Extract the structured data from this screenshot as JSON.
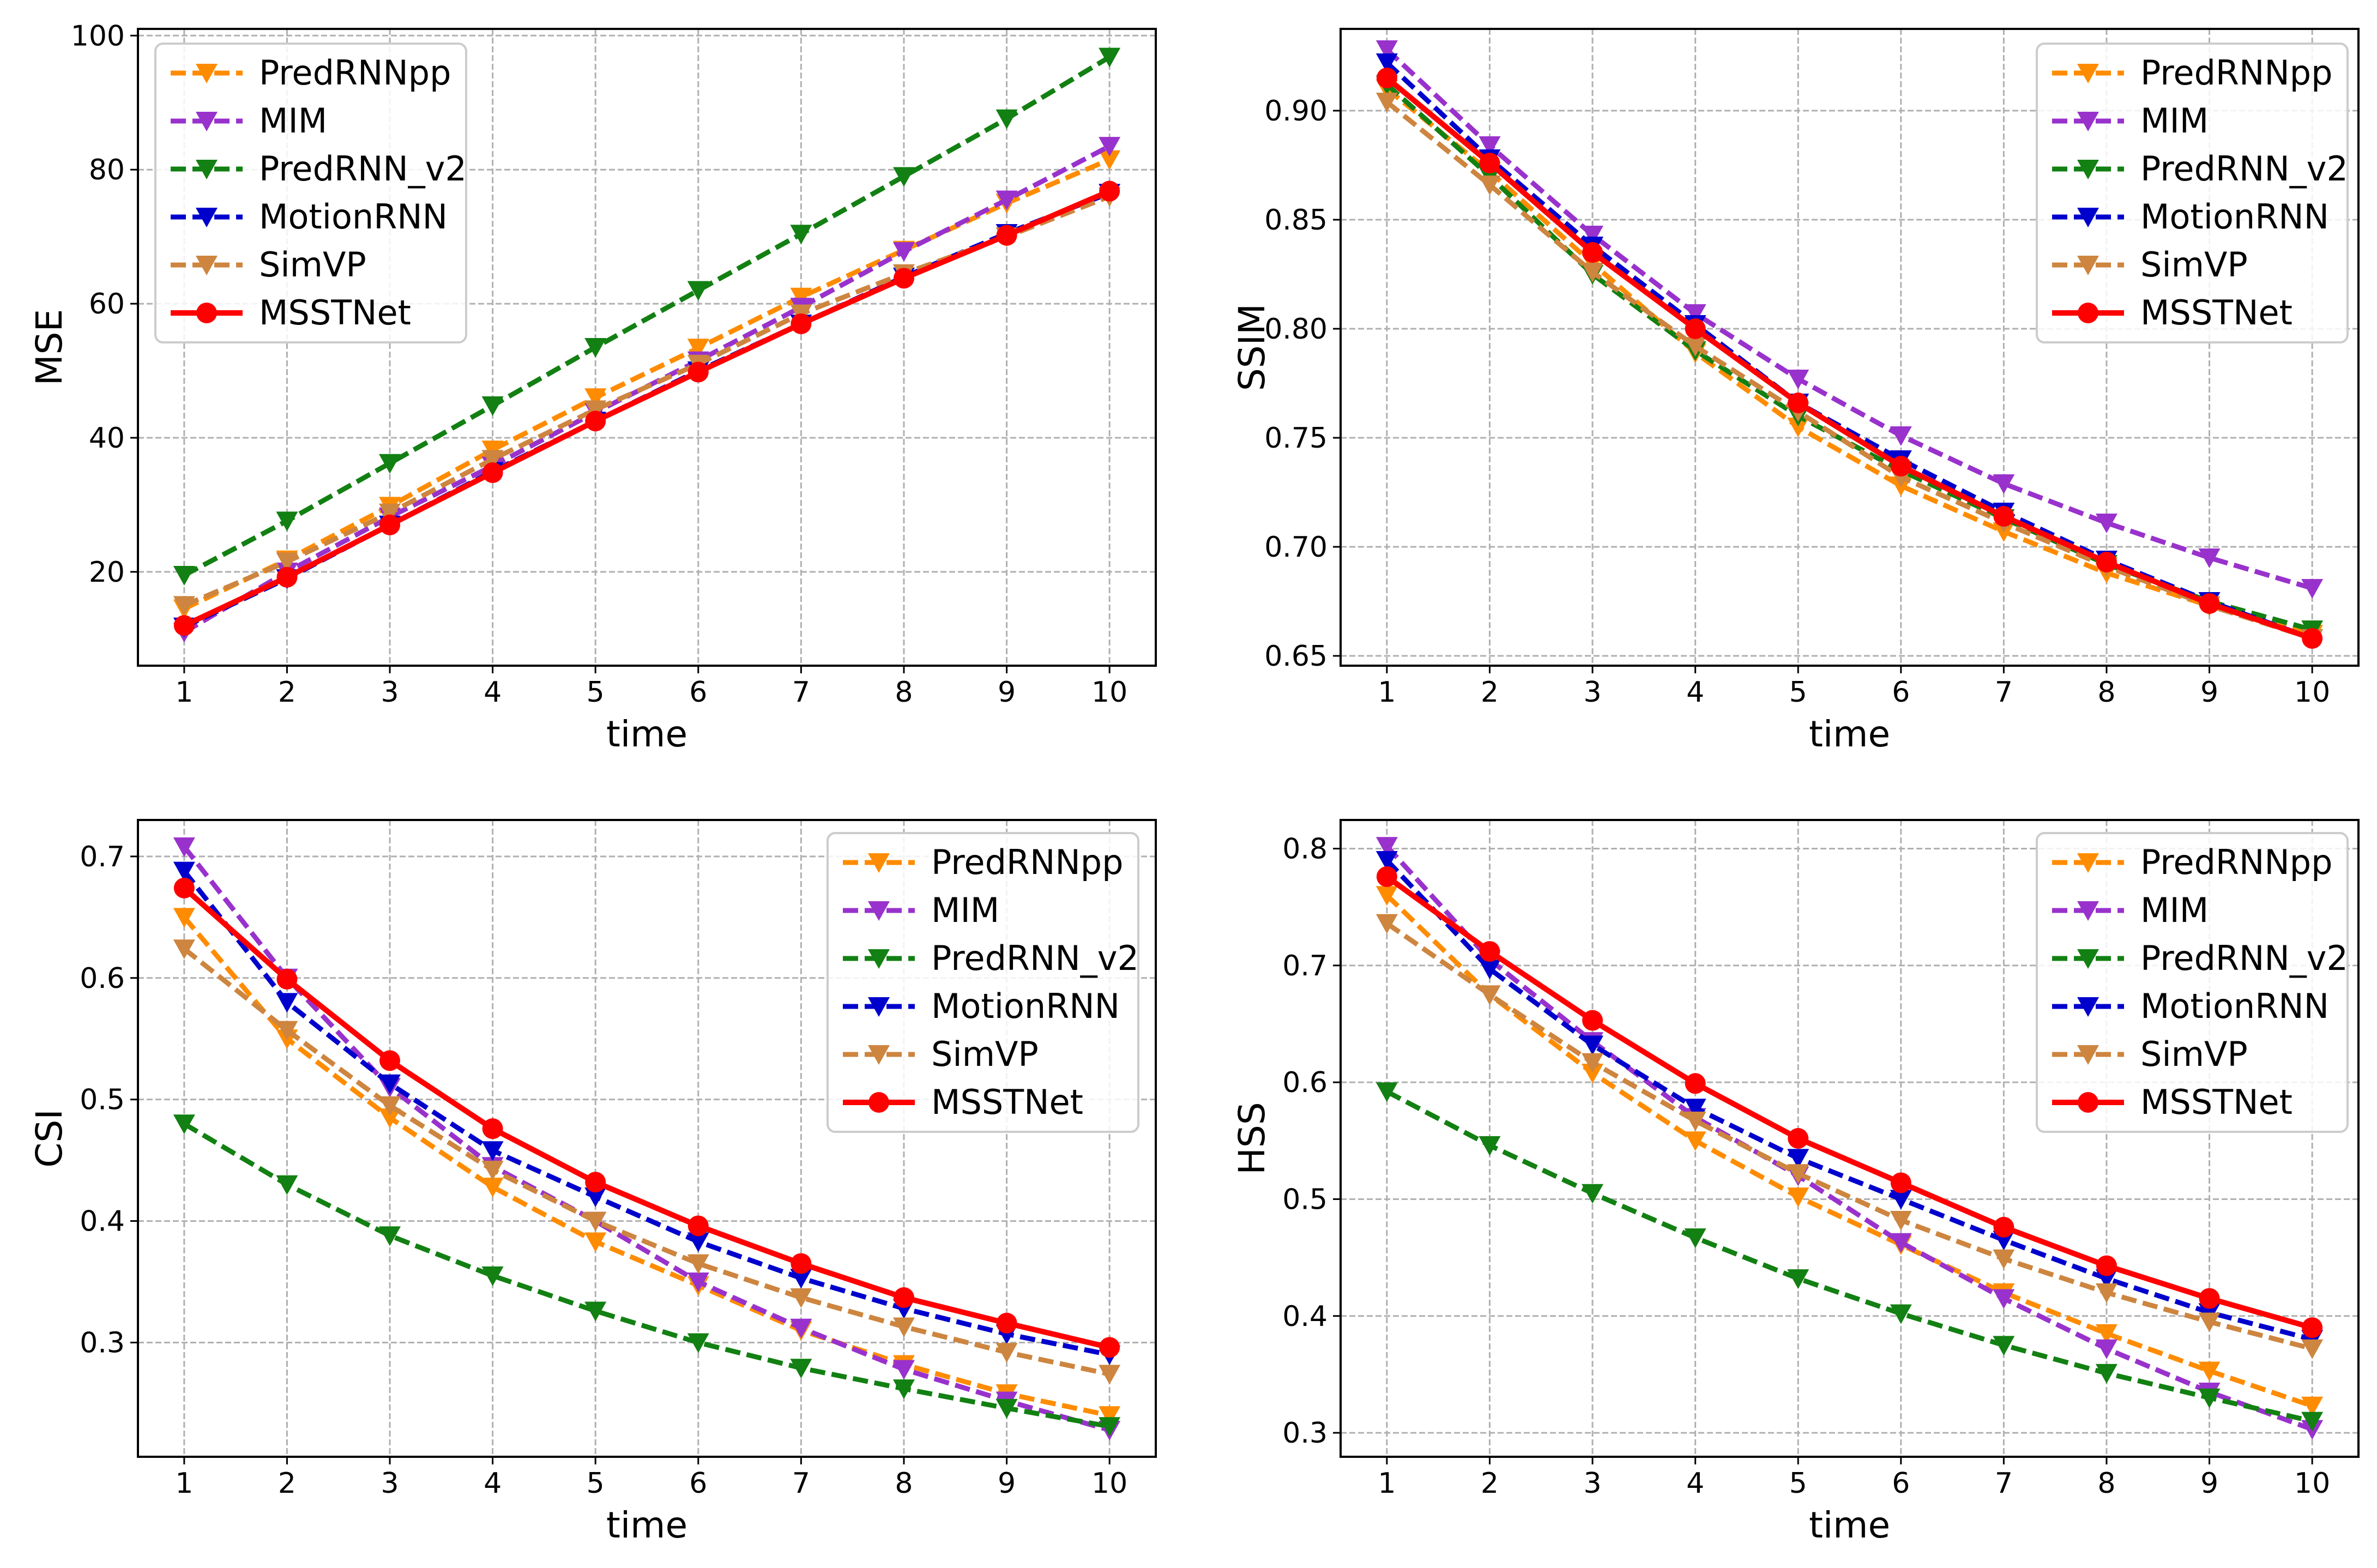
{
  "figure": {
    "title": ""
  },
  "series_styles": {
    "PredRNNpp": {
      "color": "#ff8c00",
      "marker": "triangle-down",
      "line": "dashed"
    },
    "MIM": {
      "color": "#9932cc",
      "marker": "triangle-down",
      "line": "dashed"
    },
    "PredRNN_v2": {
      "color": "#128012",
      "marker": "triangle-down",
      "line": "dashed"
    },
    "MotionRNN": {
      "color": "#0000cd",
      "marker": "triangle-down",
      "line": "dashed"
    },
    "SimVP": {
      "color": "#cd853f",
      "marker": "triangle-down",
      "line": "dashed"
    },
    "MSSTNet": {
      "color": "#ff0000",
      "marker": "circle",
      "line": "solid"
    }
  },
  "chart_data": [
    {
      "type": "line",
      "title": "",
      "xlabel": "time",
      "ylabel": "MSE",
      "x": [
        1,
        2,
        3,
        4,
        5,
        6,
        7,
        8,
        9,
        10
      ],
      "xlim": [
        0.55,
        10.45
      ],
      "ylim": [
        6,
        101
      ],
      "yticks": [
        20,
        40,
        60,
        80,
        100
      ],
      "ytick_labels": [
        "20",
        "40",
        "60",
        "80",
        "100"
      ],
      "xtick_labels": [
        "1",
        "2",
        "3",
        "4",
        "5",
        "6",
        "7",
        "8",
        "9",
        "10"
      ],
      "grid": true,
      "legend_position": "top-left",
      "series": [
        {
          "name": "PredRNNpp",
          "values": [
            14.5,
            21.8,
            29.8,
            38.2,
            46.0,
            53.4,
            61.0,
            68.0,
            75.0,
            81.5
          ]
        },
        {
          "name": "MIM",
          "values": [
            11.0,
            20.0,
            28.2,
            35.8,
            43.8,
            51.5,
            59.5,
            67.8,
            75.5,
            83.5
          ]
        },
        {
          "name": "PredRNN_v2",
          "values": [
            19.5,
            27.6,
            36.2,
            44.8,
            53.5,
            62.0,
            70.4,
            79.0,
            87.6,
            96.8
          ]
        },
        {
          "name": "MotionRNN",
          "values": [
            11.8,
            19.0,
            27.0,
            35.0,
            42.5,
            50.0,
            57.0,
            64.0,
            70.5,
            76.5
          ]
        },
        {
          "name": "SimVP",
          "values": [
            15.0,
            21.5,
            28.8,
            36.8,
            44.2,
            51.0,
            58.5,
            64.5,
            70.0,
            76.0
          ]
        },
        {
          "name": "MSSTNet",
          "values": [
            12.0,
            19.2,
            27.0,
            34.8,
            42.5,
            49.8,
            57.0,
            63.8,
            70.2,
            76.8
          ]
        }
      ]
    },
    {
      "type": "line",
      "title": "",
      "xlabel": "time",
      "ylabel": "SSIM",
      "x": [
        1,
        2,
        3,
        4,
        5,
        6,
        7,
        8,
        9,
        10
      ],
      "xlim": [
        0.55,
        10.45
      ],
      "ylim": [
        0.6455,
        0.9375
      ],
      "yticks": [
        0.65,
        0.7,
        0.75,
        0.8,
        0.85,
        0.9
      ],
      "ytick_labels": [
        "0.65",
        "0.70",
        "0.75",
        "0.80",
        "0.85",
        "0.90"
      ],
      "xtick_labels": [
        "1",
        "2",
        "3",
        "4",
        "5",
        "6",
        "7",
        "8",
        "9",
        "10"
      ],
      "grid": true,
      "legend_position": "top-right",
      "series": [
        {
          "name": "PredRNNpp",
          "values": [
            0.91,
            0.872,
            0.83,
            0.789,
            0.755,
            0.728,
            0.707,
            0.688,
            0.673,
            0.66
          ]
        },
        {
          "name": "MIM",
          "values": [
            0.928,
            0.884,
            0.843,
            0.807,
            0.777,
            0.751,
            0.729,
            0.711,
            0.695,
            0.681
          ]
        },
        {
          "name": "PredRNN_v2",
          "values": [
            0.912,
            0.87,
            0.825,
            0.79,
            0.76,
            0.735,
            0.713,
            0.692,
            0.675,
            0.662
          ]
        },
        {
          "name": "MotionRNN",
          "values": [
            0.922,
            0.878,
            0.838,
            0.802,
            0.766,
            0.74,
            0.716,
            0.694,
            0.675,
            0.658
          ]
        },
        {
          "name": "SimVP",
          "values": [
            0.904,
            0.866,
            0.826,
            0.792,
            0.762,
            0.732,
            0.711,
            0.691,
            0.673,
            0.658
          ]
        },
        {
          "name": "MSSTNet",
          "values": [
            0.915,
            0.876,
            0.835,
            0.8,
            0.766,
            0.737,
            0.714,
            0.693,
            0.674,
            0.658
          ]
        }
      ]
    },
    {
      "type": "line",
      "title": "",
      "xlabel": "time",
      "ylabel": "CSI",
      "x": [
        1,
        2,
        3,
        4,
        5,
        6,
        7,
        8,
        9,
        10
      ],
      "xlim": [
        0.55,
        10.45
      ],
      "ylim": [
        0.206,
        0.73
      ],
      "yticks": [
        0.3,
        0.4,
        0.5,
        0.6,
        0.7
      ],
      "ytick_labels": [
        "0.3",
        "0.4",
        "0.5",
        "0.6",
        "0.7"
      ],
      "xtick_labels": [
        "1",
        "2",
        "3",
        "4",
        "5",
        "6",
        "7",
        "8",
        "9",
        "10"
      ],
      "grid": true,
      "legend_position": "top-right",
      "series": [
        {
          "name": "PredRNNpp",
          "values": [
            0.65,
            0.55,
            0.485,
            0.428,
            0.383,
            0.347,
            0.31,
            0.282,
            0.258,
            0.24
          ]
        },
        {
          "name": "MIM",
          "values": [
            0.708,
            0.6,
            0.51,
            0.445,
            0.4,
            0.35,
            0.312,
            0.278,
            0.252,
            0.228
          ]
        },
        {
          "name": "PredRNN_v2",
          "values": [
            0.48,
            0.43,
            0.388,
            0.355,
            0.326,
            0.3,
            0.279,
            0.262,
            0.246,
            0.231
          ]
        },
        {
          "name": "MotionRNN",
          "values": [
            0.688,
            0.58,
            0.513,
            0.458,
            0.42,
            0.383,
            0.353,
            0.328,
            0.307,
            0.29
          ]
        },
        {
          "name": "SimVP",
          "values": [
            0.624,
            0.557,
            0.495,
            0.442,
            0.4,
            0.365,
            0.337,
            0.313,
            0.292,
            0.274
          ]
        },
        {
          "name": "MSSTNet",
          "values": [
            0.674,
            0.599,
            0.532,
            0.476,
            0.432,
            0.396,
            0.365,
            0.337,
            0.316,
            0.296
          ]
        }
      ]
    },
    {
      "type": "line",
      "title": "",
      "xlabel": "time",
      "ylabel": "HSS",
      "x": [
        1,
        2,
        3,
        4,
        5,
        6,
        7,
        8,
        9,
        10
      ],
      "xlim": [
        0.55,
        10.45
      ],
      "ylim": [
        0.2795,
        0.8245
      ],
      "yticks": [
        0.3,
        0.4,
        0.5,
        0.6,
        0.7,
        0.8
      ],
      "ytick_labels": [
        "0.3",
        "0.4",
        "0.5",
        "0.6",
        "0.7",
        "0.8"
      ],
      "xtick_labels": [
        "1",
        "2",
        "3",
        "4",
        "5",
        "6",
        "7",
        "8",
        "9",
        "10"
      ],
      "grid": true,
      "legend_position": "top-right",
      "series": [
        {
          "name": "PredRNNpp",
          "values": [
            0.76,
            0.675,
            0.608,
            0.55,
            0.502,
            0.461,
            0.42,
            0.385,
            0.353,
            0.323
          ]
        },
        {
          "name": "MIM",
          "values": [
            0.802,
            0.705,
            0.635,
            0.57,
            0.52,
            0.463,
            0.415,
            0.372,
            0.335,
            0.303
          ]
        },
        {
          "name": "PredRNN_v2",
          "values": [
            0.592,
            0.546,
            0.505,
            0.467,
            0.432,
            0.402,
            0.375,
            0.351,
            0.33,
            0.31
          ]
        },
        {
          "name": "MotionRNN",
          "values": [
            0.79,
            0.697,
            0.632,
            0.578,
            0.535,
            0.5,
            0.465,
            0.432,
            0.403,
            0.38
          ]
        },
        {
          "name": "SimVP",
          "values": [
            0.736,
            0.675,
            0.617,
            0.567,
            0.522,
            0.482,
            0.449,
            0.42,
            0.395,
            0.372
          ]
        },
        {
          "name": "MSSTNet",
          "values": [
            0.776,
            0.712,
            0.653,
            0.599,
            0.552,
            0.514,
            0.476,
            0.443,
            0.415,
            0.39
          ]
        }
      ]
    }
  ]
}
